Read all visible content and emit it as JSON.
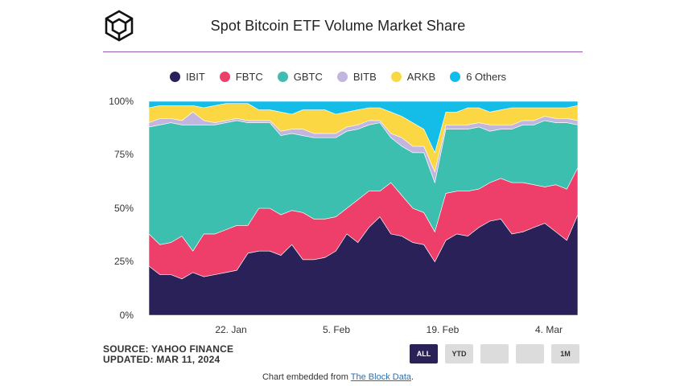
{
  "header": {
    "title": "Spot Bitcoin ETF Volume Market Share"
  },
  "legend": [
    {
      "label": "IBIT",
      "color": "#2a2159"
    },
    {
      "label": "FBTC",
      "color": "#ee3f6b"
    },
    {
      "label": "GBTC",
      "color": "#3dbfb0"
    },
    {
      "label": "BITB",
      "color": "#c2b5de"
    },
    {
      "label": "ARKB",
      "color": "#fbd743"
    },
    {
      "label": "6 Others",
      "color": "#14bce8"
    }
  ],
  "footer": {
    "source": "SOURCE: YAHOO FINANCE",
    "updated": "UPDATED: MAR 11, 2024",
    "embed_prefix": "Chart embedded from ",
    "embed_link": "The Block Data",
    "embed_suffix": "."
  },
  "range_buttons": [
    {
      "label": "ALL",
      "active": true
    },
    {
      "label": "YTD",
      "active": false
    },
    {
      "label": "",
      "active": false
    },
    {
      "label": "",
      "active": false
    },
    {
      "label": "1M",
      "active": false
    }
  ],
  "chart_data": {
    "type": "area",
    "stacked": true,
    "normalized": true,
    "x": [
      "2024-01-11",
      "2024-01-12",
      "2024-01-16",
      "2024-01-17",
      "2024-01-18",
      "2024-01-19",
      "2024-01-22",
      "2024-01-23",
      "2024-01-24",
      "2024-01-25",
      "2024-01-26",
      "2024-01-29",
      "2024-01-30",
      "2024-01-31",
      "2024-02-01",
      "2024-02-02",
      "2024-02-05",
      "2024-02-06",
      "2024-02-07",
      "2024-02-08",
      "2024-02-09",
      "2024-02-12",
      "2024-02-13",
      "2024-02-14",
      "2024-02-15",
      "2024-02-16",
      "2024-02-20",
      "2024-02-21",
      "2024-02-22",
      "2024-02-23",
      "2024-02-26",
      "2024-02-27",
      "2024-02-28",
      "2024-02-29",
      "2024-03-01",
      "2024-03-04",
      "2024-03-05",
      "2024-03-06",
      "2024-03-07",
      "2024-03-08"
    ],
    "x_ticks": [
      "22. Jan",
      "5. Feb",
      "19. Feb",
      "4. Mar"
    ],
    "y_ticks": [
      "0%",
      "25%",
      "50%",
      "75%",
      "100%"
    ],
    "ylim": [
      0,
      100
    ],
    "grid": false,
    "legend_position": "top",
    "series": [
      {
        "name": "IBIT",
        "values": [
          23,
          19,
          19,
          17,
          20,
          18,
          19,
          20,
          21,
          29,
          30,
          30,
          28,
          33,
          26,
          26,
          27,
          30,
          38,
          34,
          41,
          46,
          38,
          37,
          34,
          33,
          25,
          35,
          38,
          37,
          41,
          44,
          45,
          38,
          39,
          41,
          43,
          39,
          35,
          47
        ]
      },
      {
        "name": "FBTC",
        "values": [
          15,
          14,
          15,
          20,
          10,
          20,
          19,
          20,
          21,
          13,
          20,
          20,
          19,
          16,
          22,
          19,
          18,
          16,
          12,
          20,
          17,
          12,
          24,
          19,
          16,
          15,
          14,
          22,
          20,
          21,
          18,
          18,
          19,
          24,
          23,
          20,
          17,
          22,
          24,
          22
        ]
      },
      {
        "name": "GBTC",
        "values": [
          50,
          56,
          56,
          52,
          59,
          51,
          51,
          50,
          49,
          48,
          40,
          40,
          37,
          36,
          36,
          38,
          38,
          37,
          36,
          33,
          31,
          32,
          21,
          23,
          26,
          28,
          23,
          30,
          29,
          29,
          29,
          24,
          23,
          25,
          27,
          28,
          31,
          29,
          31,
          20
        ]
      },
      {
        "name": "BITB",
        "values": [
          2,
          3,
          2,
          2,
          6,
          2,
          1,
          1,
          1,
          1,
          1,
          1,
          2,
          2,
          3,
          2,
          2,
          2,
          2,
          2,
          2,
          1,
          2,
          4,
          3,
          3,
          5,
          2,
          2,
          2,
          2,
          3,
          2,
          2,
          2,
          2,
          2,
          2,
          2,
          2
        ]
      },
      {
        "name": "ARKB",
        "values": [
          7,
          6,
          6,
          7,
          3,
          6,
          8,
          8,
          7,
          8,
          5,
          5,
          9,
          7,
          9,
          11,
          11,
          9,
          7,
          7,
          6,
          6,
          10,
          10,
          11,
          8,
          9,
          6,
          6,
          8,
          7,
          6,
          7,
          8,
          6,
          6,
          4,
          5,
          5,
          7
        ]
      },
      {
        "name": "6 Others",
        "values": [
          3,
          2,
          2,
          2,
          2,
          3,
          2,
          1,
          1,
          1,
          4,
          4,
          5,
          6,
          4,
          4,
          4,
          6,
          5,
          4,
          3,
          3,
          5,
          7,
          10,
          13,
          24,
          5,
          5,
          3,
          3,
          5,
          4,
          3,
          3,
          3,
          3,
          3,
          3,
          2
        ]
      }
    ]
  }
}
